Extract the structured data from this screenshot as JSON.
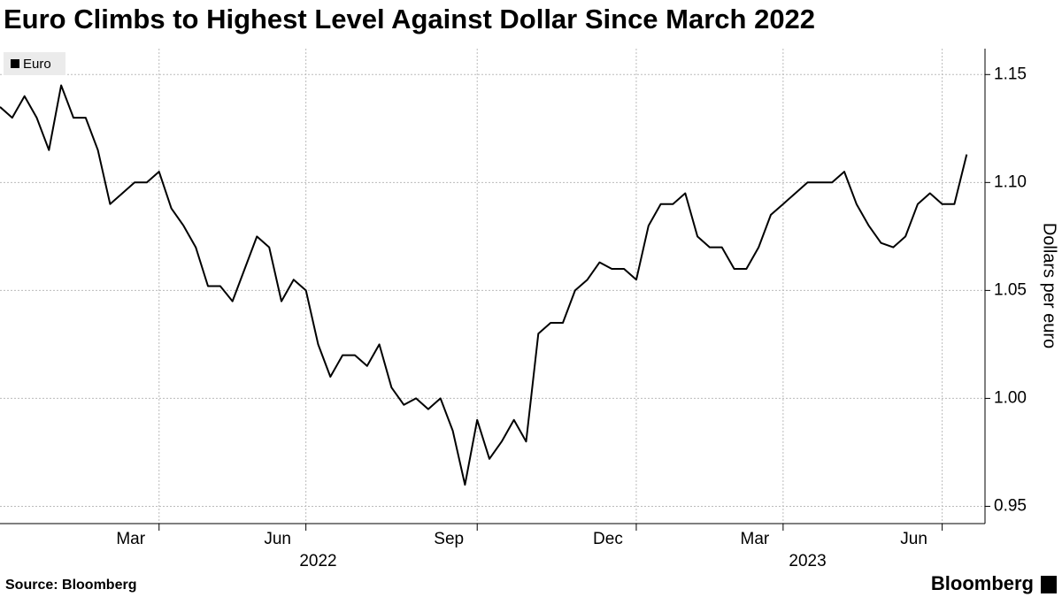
{
  "chart_data": {
    "type": "line",
    "title": "Euro Climbs to Highest Level Against Dollar Since March 2022",
    "y_label": "Dollars per euro",
    "source": "Source: Bloomberg",
    "brand": "Bloomberg",
    "categories": [
      null,
      null,
      null,
      null,
      null,
      null,
      null,
      null,
      null,
      null,
      null,
      null,
      null,
      "Mar",
      null,
      null,
      null,
      null,
      null,
      null,
      null,
      null,
      null,
      null,
      null,
      "Jun",
      null,
      null,
      null,
      null,
      null,
      null,
      null,
      null,
      null,
      null,
      null,
      null,
      null,
      "Sep",
      null,
      null,
      null,
      null,
      null,
      null,
      null,
      null,
      null,
      null,
      null,
      null,
      "Dec",
      null,
      null,
      null,
      null,
      null,
      null,
      null,
      null,
      null,
      null,
      null,
      "Mar",
      null,
      null,
      null,
      null,
      null,
      null,
      null,
      null,
      null,
      null,
      null,
      null,
      "Jun",
      null,
      null
    ],
    "years": [
      null,
      null,
      null,
      null,
      null,
      null,
      null,
      null,
      null,
      null,
      null,
      null,
      null,
      null,
      null,
      null,
      null,
      null,
      null,
      null,
      null,
      null,
      null,
      null,
      null,
      null,
      "2022",
      null,
      null,
      null,
      null,
      null,
      null,
      null,
      null,
      null,
      null,
      null,
      null,
      null,
      null,
      null,
      null,
      null,
      null,
      null,
      null,
      null,
      null,
      null,
      null,
      null,
      null,
      null,
      null,
      null,
      null,
      null,
      null,
      null,
      null,
      null,
      null,
      null,
      null,
      null,
      "2023",
      null,
      null,
      null,
      null,
      null,
      null,
      null,
      null,
      null,
      null,
      null,
      null,
      null
    ],
    "series": [
      {
        "name": "Euro",
        "color": "#000000",
        "values": [
          1.135,
          1.13,
          1.14,
          1.13,
          1.115,
          1.145,
          1.13,
          1.13,
          1.115,
          1.09,
          1.095,
          1.1,
          1.1,
          1.105,
          1.088,
          1.08,
          1.07,
          1.052,
          1.052,
          1.045,
          1.06,
          1.075,
          1.07,
          1.045,
          1.055,
          1.05,
          1.025,
          1.01,
          1.02,
          1.02,
          1.015,
          1.025,
          1.005,
          0.997,
          1.0,
          0.995,
          1.0,
          0.985,
          0.96,
          0.99,
          0.972,
          0.98,
          0.99,
          0.98,
          1.03,
          1.035,
          1.035,
          1.05,
          1.055,
          1.063,
          1.06,
          1.06,
          1.055,
          1.08,
          1.09,
          1.09,
          1.095,
          1.075,
          1.07,
          1.07,
          1.06,
          1.06,
          1.07,
          1.085,
          1.09,
          1.095,
          1.1,
          1.1,
          1.1,
          1.105,
          1.09,
          1.08,
          1.072,
          1.07,
          1.075,
          1.09,
          1.095,
          1.09,
          1.09,
          1.113
        ]
      }
    ],
    "ylim": [
      0.942,
      1.162
    ],
    "yticks": [
      0.95,
      {
        "value": 1.0,
        "label": "1.00"
      },
      1.05,
      {
        "value": 1.1,
        "label": "1.10"
      },
      1.15
    ],
    "grid": true,
    "legend": "top-left"
  }
}
